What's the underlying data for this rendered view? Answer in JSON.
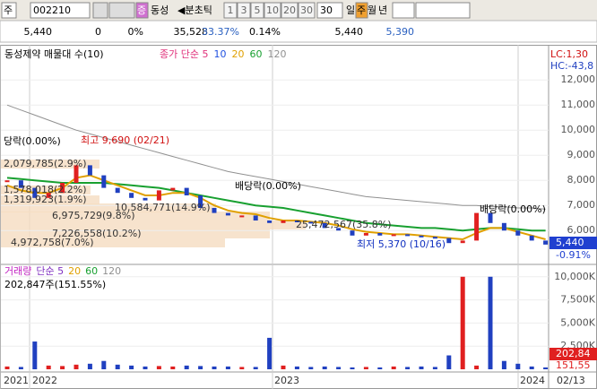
{
  "toolbar": {
    "market": "주",
    "code": "002210",
    "tag": "증",
    "name": "동성",
    "period_nav": "◀분초틱",
    "periods": [
      "1",
      "3",
      "5",
      "10",
      "20",
      "30"
    ],
    "interval": "30",
    "units": [
      "일",
      "주",
      "월",
      "년"
    ]
  },
  "quote": [
    "5,440",
    "0",
    "0%",
    "35,528",
    "33.37%",
    "0.14%",
    "5,440",
    "5,390"
  ],
  "price_chart": {
    "title": "동성제약 매물대 수(10)",
    "legend": [
      {
        "name": "종가 단순 5",
        "color": "#e0307a"
      },
      {
        "name": "10",
        "color": "#2050e0"
      },
      {
        "name": "20",
        "color": "#e0a000"
      },
      {
        "name": "60",
        "color": "#18a030"
      },
      {
        "name": "120",
        "color": "#909090"
      }
    ],
    "ylim": [
      4650,
      13400
    ],
    "yticks": [
      {
        "value": 6000,
        "label": "6,000"
      },
      {
        "value": 7000,
        "label": "7,000"
      },
      {
        "value": 8000,
        "label": "8,000"
      },
      {
        "value": 9000,
        "label": "9,000"
      },
      {
        "value": 10000,
        "label": "10,000"
      },
      {
        "value": 11000,
        "label": "11,000"
      },
      {
        "value": 12000,
        "label": "12,000"
      }
    ],
    "close": [
      8000,
      7700,
      7300,
      7500,
      7900,
      8600,
      8200,
      7700,
      7500,
      7300,
      7200,
      7600,
      7700,
      7400,
      6900,
      6700,
      6600,
      6600,
      6400,
      6300,
      6400,
      6350,
      6300,
      6100,
      6000,
      5800,
      5900,
      5800,
      5850,
      5800,
      5750,
      5700,
      5500,
      5600,
      6700,
      6300,
      6000,
      5800,
      5600,
      5440
    ],
    "ma": [
      {
        "color": "#909090",
        "values": [
          11000,
          10800,
          10600,
          10400,
          10200,
          10000,
          9850,
          9700,
          9550,
          9400,
          9250,
          9100,
          8950,
          8800,
          8650,
          8500,
          8350,
          8250,
          8150,
          8050,
          7950,
          7850,
          7750,
          7650,
          7550,
          7450,
          7350,
          7300,
          7250,
          7200,
          7150,
          7100,
          7050,
          7000,
          7000,
          6950,
          6950,
          6900,
          6900,
          6850
        ]
      },
      {
        "color": "#18a030",
        "values": [
          8100,
          8050,
          8000,
          7950,
          7900,
          7900,
          7900,
          7900,
          7850,
          7800,
          7750,
          7700,
          7600,
          7500,
          7400,
          7300,
          7200,
          7100,
          7000,
          6950,
          6900,
          6800,
          6700,
          6600,
          6500,
          6400,
          6300,
          6250,
          6200,
          6150,
          6100,
          6100,
          6050,
          6000,
          6050,
          6100,
          6100,
          6050,
          6000,
          6000
        ]
      },
      {
        "color": "#e0a000",
        "values": [
          7800,
          7600,
          7500,
          7500,
          7700,
          8100,
          8200,
          8000,
          7800,
          7600,
          7400,
          7400,
          7500,
          7500,
          7300,
          7000,
          6800,
          6700,
          6650,
          6500,
          6400,
          6400,
          6350,
          6300,
          6200,
          6050,
          5950,
          5900,
          5850,
          5850,
          5800,
          5750,
          5700,
          5650,
          5900,
          6100,
          6100,
          5950,
          5800,
          5650
        ]
      }
    ],
    "last_price": "5,440",
    "last_change": "-0.91%",
    "lc": "LC:1,30",
    "hc": "HC:-43,8",
    "annotations": [
      "당락(0.00%)",
      "최고 9,690 (02/21)",
      "배당락(0.00%)",
      "최저 5,370 (10/16)",
      "배당락(0.00%)"
    ],
    "profile": [
      "2,079,785(2.9%)",
      "1,578,018(2.2%)",
      "1,319,923(1.9%)",
      "10,584,771(14.9%)",
      "6,975,729(9.8%)",
      "25,472,567(35.8%)",
      "7,226,558(10.2%)",
      "4,972,758(7.0%)"
    ]
  },
  "volume_chart": {
    "legend": [
      {
        "name": "거래량",
        "color": "#c020c0"
      },
      {
        "name": "단순 5",
        "color": "#8030c0"
      },
      {
        "name": "20",
        "color": "#e0a000"
      },
      {
        "name": "60",
        "color": "#18a030"
      },
      {
        "name": "120",
        "color": "#909090"
      }
    ],
    "info": "202,847주(151.55%)",
    "ylim": [
      0,
      10850
    ],
    "yticks": [
      {
        "value": 2500,
        "label": "2,500K"
      },
      {
        "value": 5000,
        "label": "5,000K"
      },
      {
        "value": 7500,
        "label": "7,500K"
      },
      {
        "value": 10000,
        "label": "10,000K"
      }
    ],
    "values": [
      300,
      250,
      3000,
      400,
      350,
      500,
      600,
      900,
      500,
      400,
      300,
      350,
      300,
      400,
      350,
      300,
      300,
      250,
      250,
      3400,
      400,
      300,
      250,
      300,
      250,
      200,
      250,
      200,
      300,
      250,
      300,
      250,
      1500,
      10000,
      400,
      10000,
      900,
      600,
      300,
      200
    ],
    "last_volume": "202,84",
    "last_ratio": "151,55"
  },
  "x_labels": [
    "2021",
    "2022",
    "2023",
    "2024",
    "02/13"
  ]
}
